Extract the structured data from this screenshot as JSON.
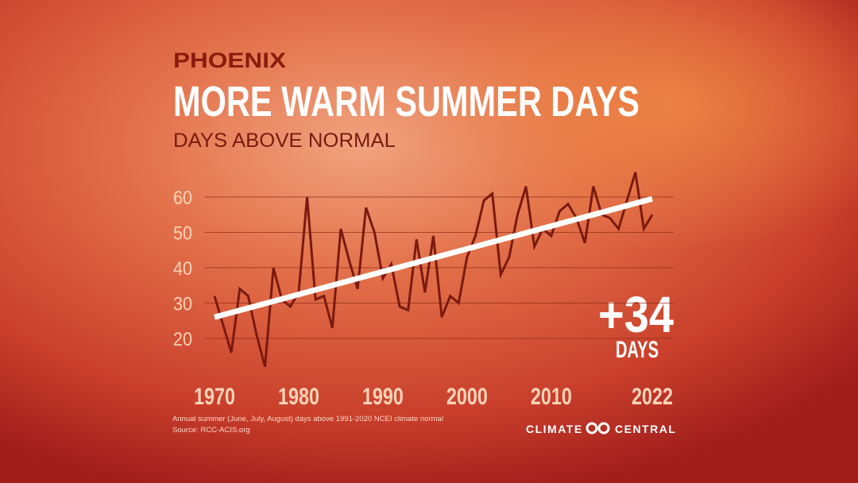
{
  "chart_data": {
    "type": "line",
    "subtitle": "PHOENIX",
    "title": "MORE WARM SUMMER DAYS",
    "ylabel": "DAYS ABOVE NORMAL",
    "x": [
      1970,
      1971,
      1972,
      1973,
      1974,
      1975,
      1976,
      1977,
      1978,
      1979,
      1980,
      1981,
      1982,
      1983,
      1984,
      1985,
      1986,
      1987,
      1988,
      1989,
      1990,
      1991,
      1992,
      1993,
      1994,
      1995,
      1996,
      1997,
      1998,
      1999,
      2000,
      2001,
      2002,
      2003,
      2004,
      2005,
      2006,
      2007,
      2008,
      2009,
      2010,
      2011,
      2012,
      2013,
      2014,
      2015,
      2016,
      2017,
      2018,
      2019,
      2020,
      2021,
      2022
    ],
    "series": [
      {
        "color": "#7a1a10",
        "values": [
          32,
          24,
          16,
          34,
          32,
          21,
          12,
          40,
          31,
          29,
          33,
          60,
          31,
          32,
          23,
          51,
          42,
          34,
          57,
          50,
          37,
          41,
          29,
          28,
          48,
          33,
          49,
          26,
          32,
          30,
          43,
          49,
          59,
          61,
          38,
          43,
          55,
          63,
          46,
          51,
          49,
          56,
          58,
          54,
          47,
          63,
          55,
          54,
          51,
          59,
          67,
          51,
          55
        ]
      },
      {
        "color": "#ffffff",
        "x": [
          1970,
          2022
        ],
        "values": [
          26,
          59.5
        ]
      }
    ],
    "xlim": [
      1970,
      2022
    ],
    "ylim": [
      10,
      70
    ],
    "yticks": [
      20,
      30,
      40,
      50,
      60
    ],
    "xticks": [
      1970,
      1980,
      1990,
      2000,
      2010,
      2022
    ],
    "grid": true,
    "annotation": {
      "value": "+34",
      "unit": "DAYS"
    },
    "footnote": [
      "Annual summer (June, July, August) days above 1991-2020 NCEI climate normal",
      "Source: RCC-ACIS.org"
    ],
    "logo": "CLIMATE CENTRAL"
  }
}
